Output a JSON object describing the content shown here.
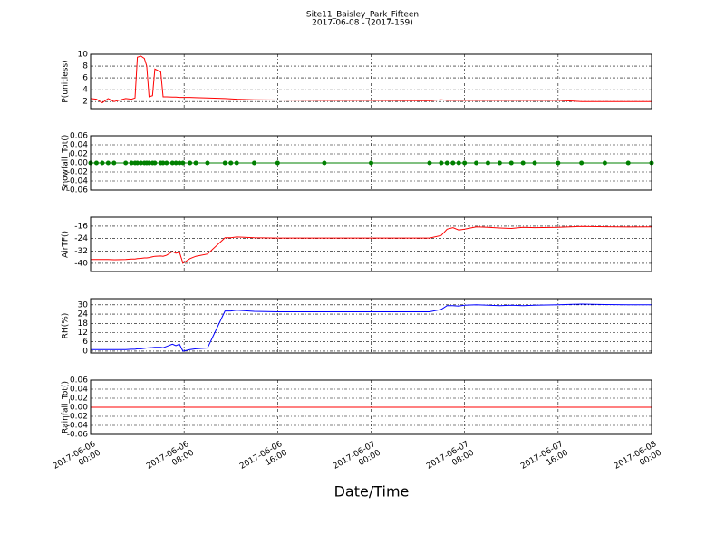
{
  "figure": {
    "title": "Site11_Baisley_Park_Fifteen",
    "subtitle": "2017-06-08 - (2017-159)",
    "xlabel": "Date/Time",
    "xlim": [
      "2017-06-06 00:00",
      "2017-06-08 00:00"
    ],
    "xticks": [
      {
        "value": "2017-06-06 00:00",
        "label": "2017-06-06\n00:00"
      },
      {
        "value": "2017-06-06 08:00",
        "label": "2017-06-06\n08:00"
      },
      {
        "value": "2017-06-06 16:00",
        "label": "2017-06-06\n16:00"
      },
      {
        "value": "2017-06-07 00:00",
        "label": "2017-06-07\n00:00"
      },
      {
        "value": "2017-06-07 08:00",
        "label": "2017-06-07\n08:00"
      },
      {
        "value": "2017-06-07 16:00",
        "label": "2017-06-07\n16:00"
      },
      {
        "value": "2017-06-08 00:00",
        "label": "2017-06-08\n00:00"
      }
    ],
    "grid": true,
    "x": [
      "2017-06-06 00:00",
      "2017-06-06 00:30",
      "2017-06-06 01:00",
      "2017-06-06 01:30",
      "2017-06-06 02:00",
      "2017-06-06 03:00",
      "2017-06-06 03:30",
      "2017-06-06 03:48",
      "2017-06-06 04:00",
      "2017-06-06 04:18",
      "2017-06-06 04:36",
      "2017-06-06 04:48",
      "2017-06-06 05:00",
      "2017-06-06 05:18",
      "2017-06-06 05:30",
      "2017-06-06 06:00",
      "2017-06-06 06:12",
      "2017-06-06 06:30",
      "2017-06-06 07:00",
      "2017-06-06 07:18",
      "2017-06-06 07:36",
      "2017-06-06 07:54",
      "2017-06-06 08:30",
      "2017-06-06 09:00",
      "2017-06-06 10:00",
      "2017-06-06 11:30",
      "2017-06-06 12:00",
      "2017-06-06 12:30",
      "2017-06-06 14:00",
      "2017-06-06 16:00",
      "2017-06-06 20:00",
      "2017-06-07 00:00",
      "2017-06-07 05:00",
      "2017-06-07 06:00",
      "2017-06-07 06:30",
      "2017-06-07 07:00",
      "2017-06-07 07:30",
      "2017-06-07 08:00",
      "2017-06-07 09:00",
      "2017-06-07 10:00",
      "2017-06-07 11:00",
      "2017-06-07 12:00",
      "2017-06-07 13:00",
      "2017-06-07 14:00",
      "2017-06-07 16:00",
      "2017-06-07 18:00",
      "2017-06-07 20:00",
      "2017-06-07 22:00",
      "2017-06-08 00:00"
    ]
  },
  "chart_data": [
    {
      "type": "line",
      "ylabel": "P(unitless)",
      "ylim": [
        0.8,
        10
      ],
      "yticks": [
        2,
        4,
        6,
        8,
        10
      ],
      "series": [
        {
          "color": "#ff0000",
          "values": [
            2.5,
            2.4,
            1.8,
            2.5,
            2.0,
            2.5,
            2.4,
            2.6,
            9.5,
            9.7,
            9.3,
            8,
            2.8,
            3,
            7.5,
            7,
            2.8,
            2.8,
            2.75,
            2.75,
            2.7,
            2.7,
            2.7,
            2.65,
            2.6,
            2.5,
            2.45,
            2.4,
            2.3,
            2.25,
            2.2,
            2.2,
            2.15,
            2.3,
            2.2,
            2.2,
            2.2,
            2.2,
            2.2,
            2.2,
            2.2,
            2.2,
            2.2,
            2.2,
            2.2,
            2.0,
            2.0,
            2.0,
            2.0
          ]
        }
      ]
    },
    {
      "type": "line",
      "ylabel": "Snowfall_Tot()",
      "ylim": [
        -0.06,
        0.06
      ],
      "yticks": [
        -0.06,
        -0.04,
        -0.02,
        {
          "value": 0,
          "label": "0.00"
        },
        0.02,
        0.04,
        0.06
      ],
      "series": [
        {
          "color": "#008000",
          "markers": true,
          "values": [
            0,
            0,
            0,
            0,
            0,
            0,
            0,
            0,
            0,
            0,
            0,
            0,
            0,
            0,
            0,
            0,
            0,
            0,
            0,
            0,
            0,
            0,
            0,
            0,
            0,
            0,
            0,
            0,
            0,
            0,
            0,
            0,
            0,
            0,
            0,
            0,
            0,
            0,
            0,
            0,
            0,
            0,
            0,
            0,
            0,
            0,
            0,
            0,
            0
          ]
        }
      ]
    },
    {
      "type": "line",
      "ylabel": "AirTF()",
      "ylim": [
        -45.3,
        -10.2
      ],
      "yticks": [
        -40,
        -32,
        -24,
        -16
      ],
      "series": [
        {
          "color": "#ff0000",
          "values": [
            -37.5,
            -37.5,
            -37.6,
            -37.6,
            -37.7,
            -37.5,
            -37.2,
            -37.3,
            -37,
            -36.8,
            -36.5,
            -36.5,
            -36.3,
            -35.8,
            -35.5,
            -35.3,
            -35.5,
            -34.8,
            -32.5,
            -33.5,
            -32.8,
            -40,
            -37,
            -35.5,
            -34,
            -23.5,
            -23.5,
            -23,
            -23.5,
            -23.7,
            -23.7,
            -23.7,
            -23.7,
            -22,
            -18,
            -17,
            -18.5,
            -18,
            -16.5,
            -16.8,
            -17.2,
            -17.5,
            -16.8,
            -17,
            -16.8,
            -16.2,
            -16.4,
            -16.6,
            -16.5
          ]
        }
      ]
    },
    {
      "type": "line",
      "ylabel": "RH(%)",
      "ylim": [
        -1.2,
        34
      ],
      "yticks": [
        0,
        6,
        12,
        18,
        24,
        30
      ],
      "series": [
        {
          "color": "#0000ff",
          "values": [
            1,
            1,
            1,
            1,
            1,
            1,
            1.2,
            1.2,
            1.5,
            1.5,
            1.8,
            2,
            2.2,
            2.3,
            2.5,
            2.5,
            2.2,
            3,
            4.5,
            3.5,
            4.5,
            0,
            1,
            1.5,
            2,
            26,
            26,
            26.5,
            25.8,
            25.5,
            25.5,
            25.5,
            25.5,
            27,
            29.5,
            29.5,
            29.2,
            29.8,
            30,
            29.8,
            29.5,
            29.8,
            29.5,
            29.8,
            30,
            30.5,
            30.2,
            30,
            30
          ]
        }
      ]
    },
    {
      "type": "line",
      "ylabel": "Rainfall_Tot()",
      "ylim": [
        -0.06,
        0.06
      ],
      "yticks": [
        -0.06,
        -0.04,
        -0.02,
        {
          "value": 0,
          "label": "0.00"
        },
        0.02,
        0.04,
        0.06
      ],
      "series": [
        {
          "color": "#ff0000",
          "values": [
            0,
            0,
            0,
            0,
            0,
            0,
            0,
            0,
            0,
            0,
            0,
            0,
            0,
            0,
            0,
            0,
            0,
            0,
            0,
            0,
            0,
            0,
            0,
            0,
            0,
            0,
            0,
            0,
            0,
            0,
            0,
            0,
            0,
            0,
            0,
            0,
            0,
            0,
            0,
            0,
            0,
            0,
            0,
            0,
            0,
            0,
            0,
            0,
            0
          ]
        }
      ]
    }
  ]
}
